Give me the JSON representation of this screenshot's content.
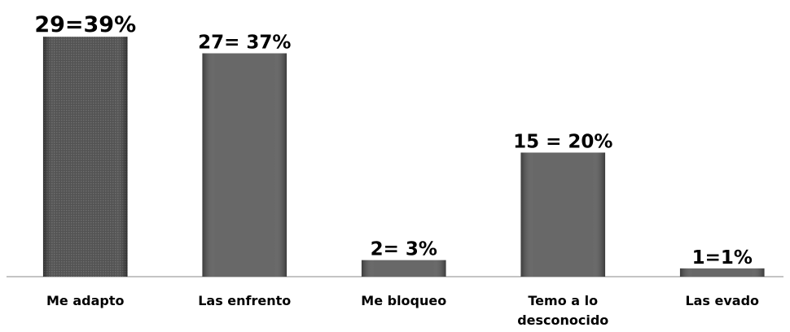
{
  "chart_data": {
    "type": "bar",
    "categories": [
      "Me adapto",
      "Las enfrento",
      "Me bloqueo",
      "Temo a lo desconocido",
      "Las evado"
    ],
    "values": [
      29,
      27,
      2,
      15,
      1
    ],
    "value_labels": [
      "29=39%",
      "27= 37%",
      "2= 3%",
      "15 = 20%",
      "1=1%"
    ],
    "color": "#5b5b5b",
    "ylim": [
      0,
      30
    ]
  }
}
